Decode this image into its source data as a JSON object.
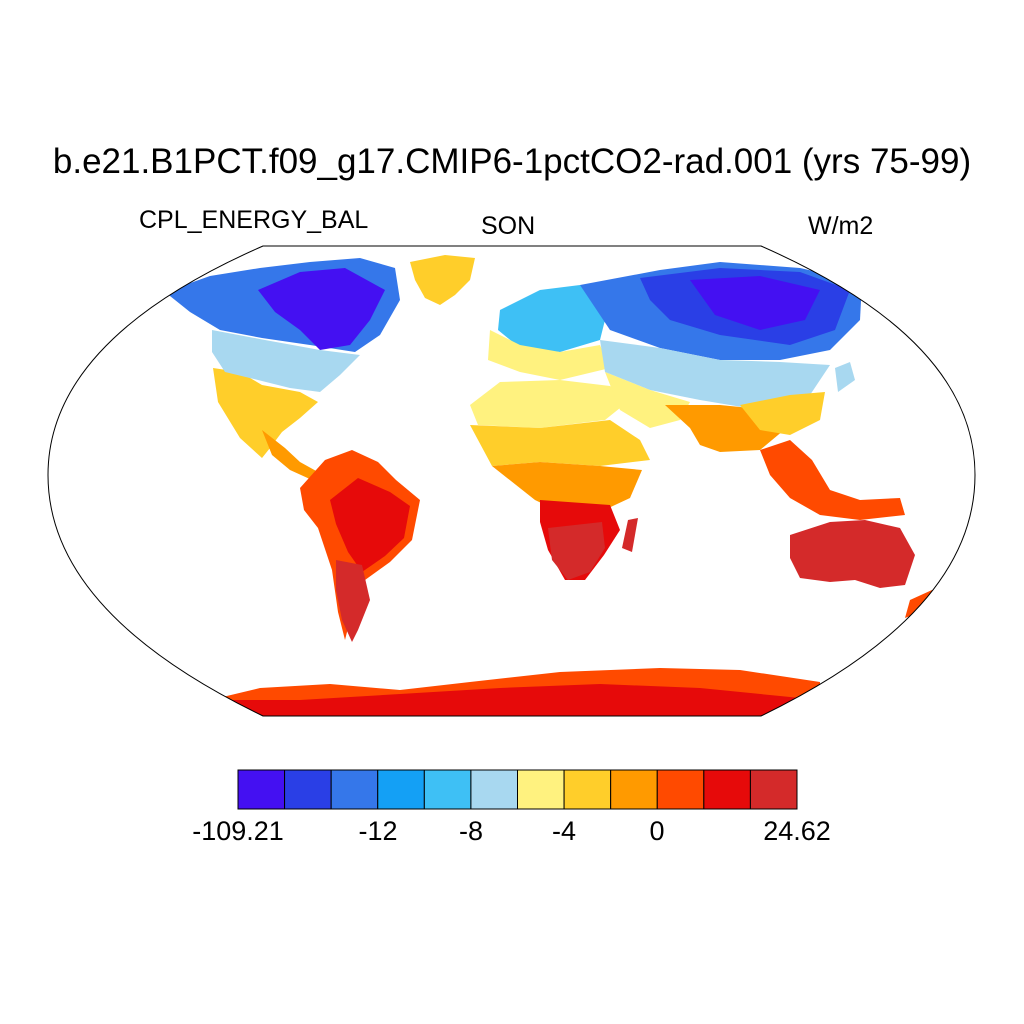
{
  "title": "b.e21.B1PCT.f09_g17.CMIP6-1pctCO2-rad.001 (yrs 75-99)",
  "left_label": "CPL_ENERGY_BAL",
  "center_label": "SON",
  "right_label": "W/m2",
  "colorbar": {
    "colors": [
      "#4410f2",
      "#2a3fe6",
      "#3577ea",
      "#14a0f5",
      "#3ec0f5",
      "#a8d8f0",
      "#fff27f",
      "#ffce2a",
      "#ff9a00",
      "#ff4a00",
      "#e60a0a",
      "#d42a2a"
    ],
    "labels": [
      "-109.21",
      "-12",
      "-8",
      "-4",
      "0",
      "24.62"
    ]
  },
  "map": {
    "projection": "Robinson",
    "ocean_fill": "#ffffff",
    "coastlines": true
  }
}
